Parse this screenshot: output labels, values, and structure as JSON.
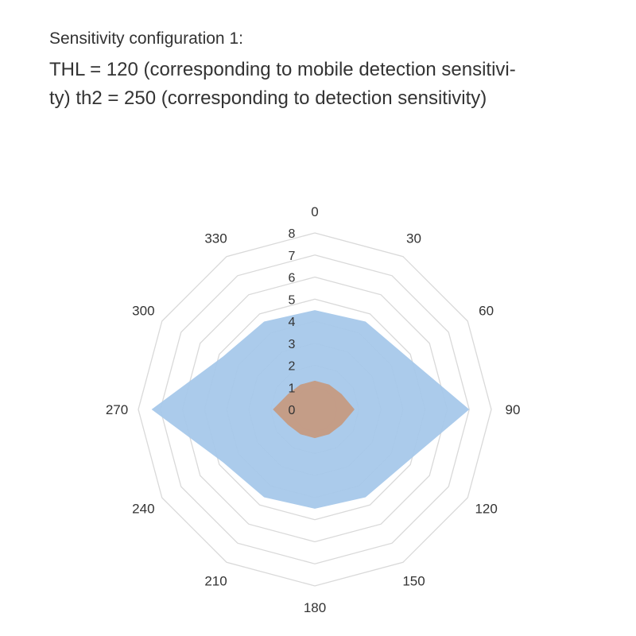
{
  "heading": {
    "subtitle": "Sensitivity configuration 1:",
    "description_line1": "THL = 120 (corresponding to mobile detection sensitivi-",
    "description_line2": "ty) th2 = 250 (corresponding to detection sensitivity)"
  },
  "chart_data": {
    "type": "radar",
    "categories": [
      "0",
      "30",
      "60",
      "90",
      "120",
      "150",
      "180",
      "210",
      "240",
      "270",
      "300",
      "330"
    ],
    "radial_ticks": [
      "0",
      "1",
      "2",
      "3",
      "4",
      "5",
      "6",
      "7",
      "8"
    ],
    "rlim": [
      0,
      8
    ],
    "grid": true,
    "series": [
      {
        "values": [
          4.5,
          4.6,
          4.8,
          7.0,
          4.8,
          4.6,
          4.5,
          4.6,
          4.8,
          7.4,
          4.8,
          4.6
        ],
        "color": "#a6c8ea"
      },
      {
        "values": [
          1.3,
          1.3,
          1.4,
          1.8,
          1.4,
          1.3,
          1.3,
          1.3,
          1.4,
          1.9,
          1.4,
          1.3
        ],
        "color": "#c59a82"
      }
    ]
  }
}
